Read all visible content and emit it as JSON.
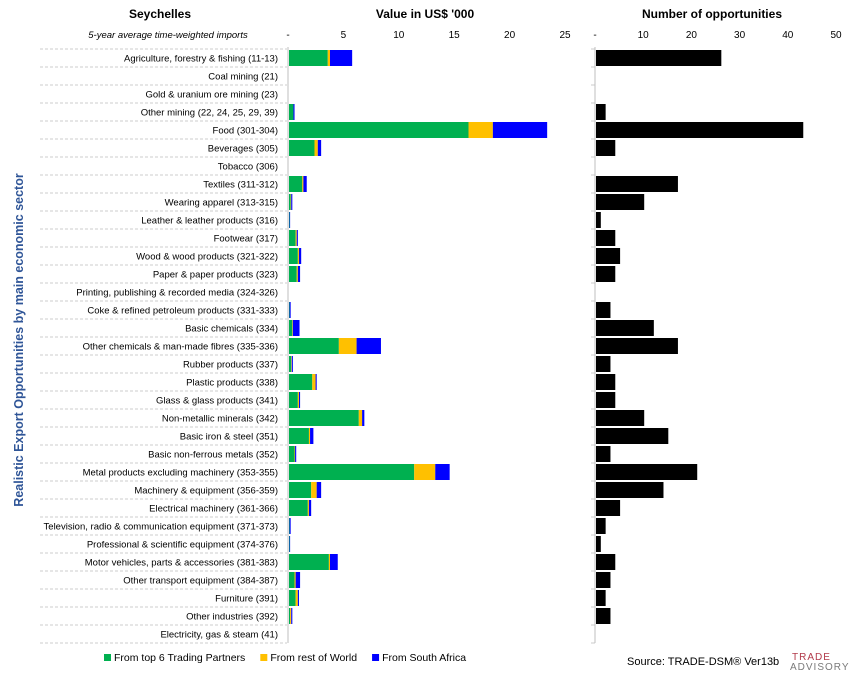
{
  "country_title": "Seychelles",
  "subtitle": "5-year average time-weighted imports",
  "ylabel": "Realistic Export Opportunities by main economic sector",
  "source": "Source: TRADE-DSM®  Ver13b",
  "logo_line1": "TRADE",
  "logo_line2": "ADVISORY",
  "colors": {
    "top6": "#00b050",
    "rest": "#ffc000",
    "sa": "#0000ff",
    "opps": "#000000",
    "axis": "#bfbfbf",
    "dash": "#bfbfbf"
  },
  "chart_data": [
    {
      "type": "bar",
      "orientation": "horizontal",
      "stacked": true,
      "title": "Value in US$ '000",
      "xlim": [
        0,
        25
      ],
      "xticks": [
        "-",
        "5",
        "10",
        "15",
        "20",
        "25"
      ],
      "categories": [
        "Agriculture, forestry & fishing (11-13)",
        "Coal mining (21)",
        "Gold & uranium ore mining (23)",
        "Other mining (22, 24, 25, 29, 39)",
        "Food (301-304)",
        "Beverages (305)",
        "Tobacco (306)",
        "Textiles (311-312)",
        "Wearing apparel (313-315)",
        "Leather & leather products (316)",
        "Footwear (317)",
        "Wood & wood products (321-322)",
        "Paper & paper products (323)",
        "Printing, publishing & recorded media (324-326)",
        "Coke & refined petroleum products (331-333)",
        "Basic chemicals (334)",
        "Other chemicals & man-made fibres (335-336)",
        "Rubber products (337)",
        "Plastic products (338)",
        "Glass & glass products (341)",
        "Non-metallic minerals (342)",
        "Basic iron & steel (351)",
        "Basic non-ferrous metals (352)",
        "Metal products excluding machinery (353-355)",
        "Machinery & equipment (356-359)",
        "Electrical machinery (361-366)",
        "Television, radio & communication equipment (371-373)",
        "Professional & scientific equipment (374-376)",
        "Motor vehicles, parts & accessories (381-383)",
        "Other transport equipment (384-387)",
        "Furniture (391)",
        "Other industries (392)",
        "Electricity, gas & steam (41)"
      ],
      "series": [
        {
          "name": "From top 6 Trading Partners",
          "values": [
            3.5,
            0,
            0,
            0.4,
            16.2,
            2.3,
            0,
            1.2,
            0.15,
            0.05,
            0.6,
            0.8,
            0.7,
            0,
            0.05,
            0.3,
            4.5,
            0.2,
            2.1,
            0.8,
            6.3,
            1.8,
            0.5,
            11.3,
            2.0,
            1.7,
            0.05,
            0.05,
            3.6,
            0.5,
            0.6,
            0.1,
            0
          ]
        },
        {
          "name": "From rest of World",
          "values": [
            0.2,
            0,
            0,
            0,
            2.2,
            0.3,
            0,
            0.1,
            0.05,
            0,
            0.1,
            0.1,
            0.1,
            0,
            0,
            0.05,
            1.6,
            0.05,
            0.3,
            0.1,
            0.3,
            0.1,
            0.05,
            1.9,
            0.5,
            0.1,
            0,
            0,
            0.1,
            0.1,
            0.2,
            0.1,
            0
          ]
        },
        {
          "name": "From South Africa",
          "values": [
            2.0,
            0,
            0,
            0.1,
            4.9,
            0.3,
            0,
            0.3,
            0.1,
            0.05,
            0.1,
            0.2,
            0.2,
            0,
            0.1,
            0.6,
            2.2,
            0.1,
            0.1,
            0.1,
            0.2,
            0.3,
            0.1,
            1.3,
            0.4,
            0.2,
            0.1,
            0.05,
            0.7,
            0.4,
            0.1,
            0.1,
            0
          ]
        }
      ]
    },
    {
      "type": "bar",
      "orientation": "horizontal",
      "title": "Number of opportunities",
      "xlim": [
        0,
        50
      ],
      "xticks": [
        "-",
        "10",
        "20",
        "30",
        "40",
        "50"
      ],
      "values": [
        26,
        0,
        0,
        2,
        43,
        4,
        0,
        17,
        10,
        1,
        4,
        5,
        4,
        0,
        3,
        12,
        17,
        3,
        4,
        4,
        10,
        15,
        3,
        21,
        14,
        5,
        2,
        1,
        4,
        3,
        2,
        3,
        0
      ]
    }
  ]
}
